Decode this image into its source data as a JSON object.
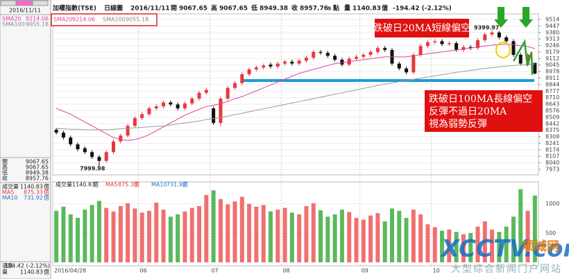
{
  "header": {
    "name": "加權指數(TSE)",
    "period": "日線圖",
    "date": "2016/11/11",
    "open_label": "開",
    "high_label": "高",
    "low_label": "低",
    "close_label": "收",
    "s": "s",
    "point": "點",
    "volume_label": "量",
    "unit": "億",
    "change": "-194.42 (-2.12%)"
  },
  "left_panel": {
    "date": "2016/11/11",
    "ohlc_labels": [
      "開",
      "高",
      "低",
      "收"
    ],
    "volume_label": "成交量",
    "ma5_label": "MA5",
    "ma10_label": "MA10",
    "ma5": "875.33",
    "ma10": "731.92",
    "change_label": "漲跌",
    "change": "-194.42 (-2.12%)",
    "qty_label": "量"
  },
  "annotations": {
    "box1": "跌破日20MA短線偏空",
    "box2": [
      "跌破日100MA長線偏空",
      "反彈不過日20MA",
      "視為弱勢反彈"
    ],
    "high_label": "9399.97",
    "low_label": "7999.98"
  },
  "watermark": {
    "logo": "XCCTV.com",
    "brand": "项城网",
    "slogan": "大型综合新闻门户网站"
  },
  "chart_data": {
    "type": "candlestick",
    "categories": [
      "2016/04/28",
      null,
      null,
      null,
      null,
      null,
      null,
      null,
      null,
      null,
      null,
      null,
      "06",
      null,
      null,
      null,
      null,
      null,
      null,
      null,
      null,
      null,
      "07",
      null,
      null,
      null,
      null,
      null,
      null,
      null,
      null,
      null,
      "08",
      null,
      null,
      null,
      null,
      null,
      null,
      null,
      null,
      null,
      null,
      "09",
      null,
      null,
      null,
      null,
      null,
      null,
      null,
      null,
      null,
      "10",
      null,
      null,
      null,
      null,
      null,
      null,
      null,
      null,
      null,
      null,
      null,
      null,
      null,
      null
    ],
    "open": [
      8380,
      8350,
      8300,
      8230,
      8190,
      8150,
      8100,
      8060,
      8150,
      8260,
      8320,
      8420,
      8500,
      8540,
      8600,
      8620,
      8660,
      8640,
      8600,
      8650,
      8700,
      8760,
      8600,
      8450,
      8700,
      8810,
      8860,
      8950,
      9000,
      9020,
      9050,
      9030,
      9060,
      9080,
      9060,
      9090,
      9120,
      9180,
      9170,
      9140,
      9100,
      9050,
      9110,
      9130,
      9150,
      9180,
      9220,
      9200,
      9060,
      9010,
      8970,
      9150,
      9240,
      9280,
      9290,
      9260,
      9270,
      9200,
      9230,
      9220,
      9300,
      9360,
      9380,
      9330,
      9290,
      9150,
      9060,
      9067.65
    ],
    "high": [
      8400,
      8370,
      8320,
      8250,
      8210,
      8170,
      8120,
      8170,
      8280,
      8340,
      8440,
      8520,
      8560,
      8620,
      8640,
      8680,
      8680,
      8660,
      8670,
      8720,
      8780,
      8810,
      8620,
      8720,
      8830,
      8880,
      8970,
      9020,
      9040,
      9060,
      9070,
      9080,
      9100,
      9100,
      9110,
      9140,
      9200,
      9200,
      9190,
      9160,
      9120,
      9130,
      9150,
      9170,
      9200,
      9240,
      9240,
      9220,
      9080,
      9030,
      9170,
      9260,
      9300,
      9310,
      9310,
      9290,
      9290,
      9250,
      9250,
      9320,
      9380,
      9399.97,
      9395,
      9350,
      9310,
      9170,
      9170,
      9067.65
    ],
    "low": [
      8330,
      8280,
      8210,
      8160,
      8130,
      8080,
      7999.98,
      8040,
      8130,
      8240,
      8300,
      8400,
      8480,
      8520,
      8580,
      8600,
      8620,
      8580,
      8580,
      8630,
      8680,
      8740,
      8430,
      8420,
      8680,
      8790,
      8840,
      8930,
      8980,
      9000,
      9010,
      9010,
      9040,
      9040,
      9040,
      9070,
      9100,
      9150,
      9120,
      9080,
      9030,
      9030,
      9090,
      9110,
      9130,
      9160,
      9180,
      9040,
      8990,
      8950,
      8950,
      9130,
      9220,
      9260,
      9240,
      9240,
      9180,
      9180,
      9200,
      9200,
      9280,
      9340,
      9310,
      9270,
      9130,
      9040,
      9040,
      8949.38
    ],
    "close": [
      8350,
      8300,
      8230,
      8180,
      8150,
      8100,
      8060,
      8150,
      8260,
      8320,
      8420,
      8500,
      8540,
      8600,
      8620,
      8660,
      8640,
      8600,
      8650,
      8700,
      8760,
      8790,
      8450,
      8700,
      8810,
      8860,
      8950,
      9000,
      9020,
      9040,
      9030,
      9060,
      9080,
      9060,
      9090,
      9120,
      9180,
      9170,
      9140,
      9100,
      9050,
      9110,
      9130,
      9150,
      9180,
      9220,
      9200,
      9060,
      9010,
      8970,
      9150,
      9240,
      9280,
      9290,
      9260,
      9270,
      9200,
      9230,
      9220,
      9300,
      9360,
      9380,
      9330,
      9290,
      9150,
      9060,
      9152,
      8957.76
    ],
    "series": [
      {
        "name": "SMA20",
        "color": "#e0409a",
        "values": [
          8600,
          8570,
          8540,
          8500,
          8460,
          8420,
          8380,
          8340,
          8300,
          8280,
          8270,
          8280,
          8300,
          8330,
          8370,
          8410,
          8450,
          8490,
          8530,
          8560,
          8590,
          8620,
          8630,
          8650,
          8670,
          8700,
          8720,
          8750,
          8780,
          8810,
          8840,
          8870,
          8900,
          8930,
          8960,
          8980,
          9000,
          9020,
          9040,
          9060,
          9070,
          9080,
          9090,
          9100,
          9110,
          9120,
          9130,
          9130,
          9130,
          9130,
          9140,
          9150,
          9160,
          9170,
          9180,
          9190,
          9200,
          9210,
          9220,
          9230,
          9240,
          9250,
          9255,
          9260,
          9255,
          9245,
          9235,
          9214.06
        ]
      },
      {
        "name": "SMA100",
        "color": "#9a9a9a",
        "values": [
          8390,
          8390,
          8385,
          8385,
          8380,
          8380,
          8380,
          8380,
          8385,
          8390,
          8395,
          8400,
          8405,
          8410,
          8415,
          8420,
          8430,
          8440,
          8450,
          8460,
          8470,
          8485,
          8495,
          8505,
          8520,
          8535,
          8550,
          8565,
          8580,
          8595,
          8610,
          8625,
          8640,
          8655,
          8670,
          8685,
          8700,
          8715,
          8730,
          8745,
          8760,
          8775,
          8790,
          8805,
          8820,
          8835,
          8850,
          8862,
          8874,
          8886,
          8898,
          8910,
          8922,
          8934,
          8946,
          8958,
          8970,
          8980,
          8990,
          9000,
          9010,
          9018,
          9026,
          9034,
          9040,
          9046,
          9051,
          9055.18
        ]
      }
    ],
    "up_color": "#e8383d",
    "down_color": "#111111",
    "support_level": 8886,
    "support_color": "#1e9bd7",
    "ylim": [
      7916,
      9571
    ],
    "yticks": [
      7973,
      8040,
      8107,
      8174,
      8241,
      8308,
      8375,
      8442,
      8509,
      8576,
      8643,
      8710,
      8777,
      8844,
      8911,
      8978,
      9045,
      9112,
      9179,
      9246,
      9313,
      9380,
      9447,
      9514
    ],
    "volume": {
      "name": "成交量",
      "values": [
        880,
        950,
        820,
        760,
        900,
        980,
        1050,
        930,
        870,
        960,
        1010,
        920,
        850,
        880,
        1020,
        900,
        780,
        820,
        870,
        930,
        960,
        1150,
        1230,
        1080,
        990,
        1040,
        1120,
        1000,
        950,
        980,
        870,
        900,
        930,
        850,
        820,
        960,
        1010,
        890,
        780,
        820,
        900,
        860,
        760,
        730,
        800,
        840,
        700,
        920,
        880,
        760,
        900,
        820,
        650,
        600,
        540,
        560,
        520,
        480,
        500,
        610,
        700,
        560,
        520,
        610,
        780,
        1250,
        880,
        1140.83
      ],
      "up_color": "#f07070",
      "down_color": "#5cb85c",
      "ylim": [
        0,
        1375
      ],
      "yticks": [
        500,
        1000
      ]
    }
  }
}
